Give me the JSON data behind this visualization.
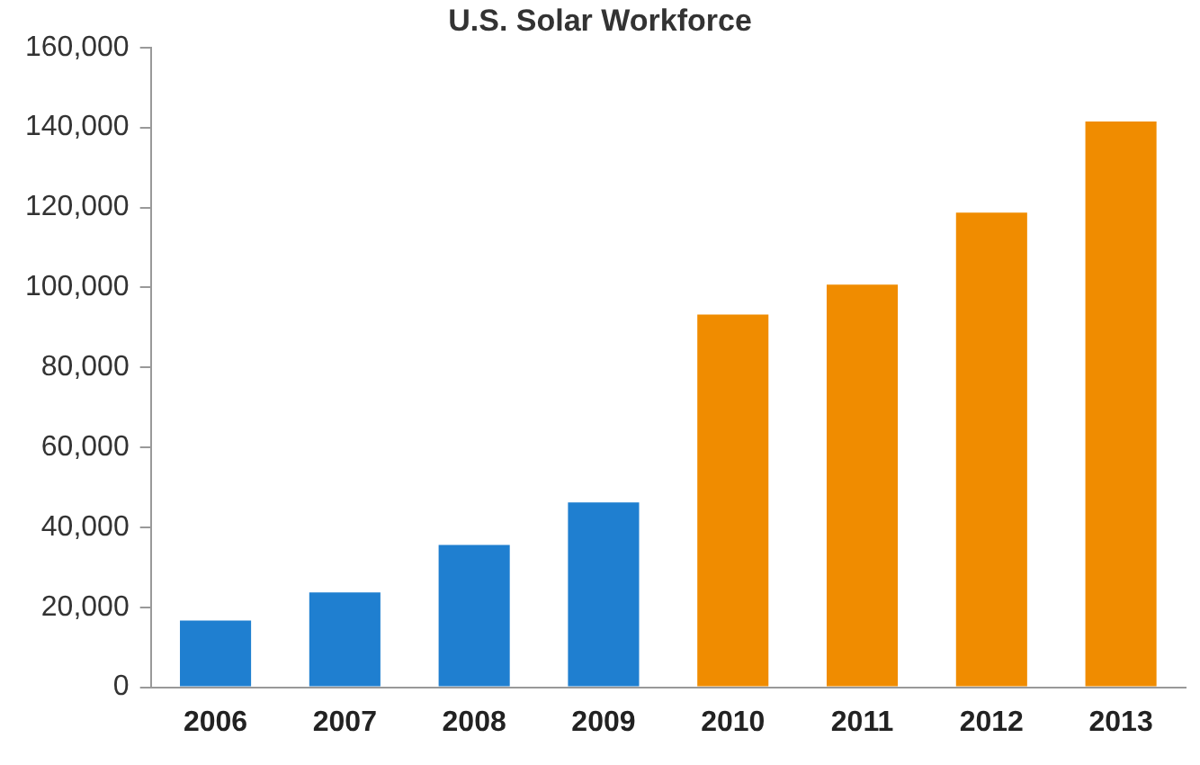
{
  "chart_data": {
    "type": "bar",
    "title": "U.S. Solar Workforce",
    "categories": [
      "2006",
      "2007",
      "2008",
      "2009",
      "2010",
      "2011",
      "2012",
      "2013"
    ],
    "values": [
      16700,
      23700,
      35600,
      46200,
      93200,
      100700,
      118700,
      141500
    ],
    "colors": [
      "#1f7fd0",
      "#1f7fd0",
      "#1f7fd0",
      "#1f7fd0",
      "#f08c00",
      "#f08c00",
      "#f08c00",
      "#f08c00"
    ],
    "ylim": [
      0,
      160000
    ],
    "yticks": [
      0,
      {
        "value": 20000,
        "label": "20,000"
      },
      {
        "value": 40000,
        "label": "40,000"
      },
      {
        "value": 60000,
        "label": "60,000"
      },
      {
        "value": 80000,
        "label": "80,000"
      },
      {
        "value": 100000,
        "label": "100,000"
      },
      {
        "value": 120000,
        "label": "120,000"
      },
      {
        "value": 140000,
        "label": "140,000"
      },
      {
        "value": 160000,
        "label": "160,000"
      }
    ],
    "grid": false
  }
}
